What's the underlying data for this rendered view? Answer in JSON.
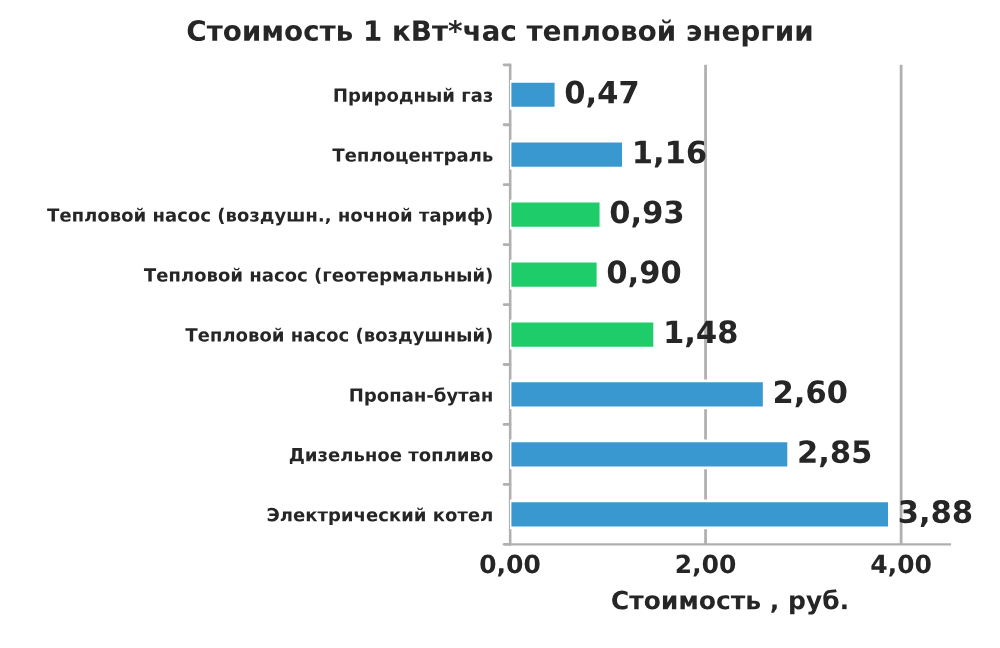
{
  "chart_data": {
    "type": "bar",
    "orientation": "horizontal",
    "title": "Стоимость 1 кВт*час тепловой энергии",
    "xlabel": "Стоимость , руб.",
    "categories": [
      "Природный газ",
      "Теплоцентраль",
      "Тепловой насос (воздушн., ночной тариф)",
      "Тепловой насос (геотермальный)",
      "Тепловой насос (воздушный)",
      "Пропан-бутан",
      "Дизельное топливо",
      "Электрический котел"
    ],
    "values": [
      0.47,
      1.16,
      0.93,
      0.9,
      1.48,
      2.6,
      2.85,
      3.88
    ],
    "colors": [
      "#3a98d0",
      "#3a98d0",
      "#1fcc6a",
      "#1fcc6a",
      "#1fcc6a",
      "#3a98d0",
      "#3a98d0",
      "#3a98d0"
    ],
    "value_labels": [
      "0,47",
      "1,16",
      "0,93",
      "0,90",
      "1,48",
      "2,60",
      "2,85",
      "3,88"
    ],
    "xlim": [
      0,
      4.5
    ],
    "xticks": [
      {
        "value": 0,
        "label": "0,00"
      },
      {
        "value": 2,
        "label": "2,00"
      },
      {
        "value": 4,
        "label": "4,00"
      }
    ],
    "grid": "x",
    "legend": false
  }
}
